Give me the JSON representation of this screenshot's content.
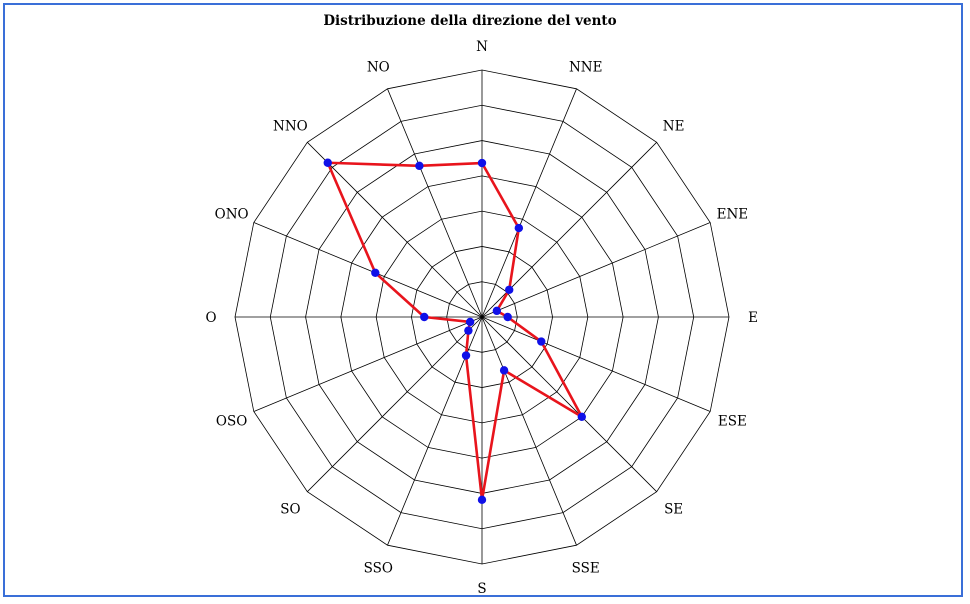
{
  "chart_data": {
    "type": "radar",
    "title": "Distribuzione della direzione del vento",
    "categories": [
      "N",
      "NNE",
      "NE",
      "ENE",
      "E",
      "ESE",
      "SE",
      "SSE",
      "S",
      "SSO",
      "SO",
      "OSO",
      "O",
      "ONO",
      "NNO",
      "NO"
    ],
    "series": [
      {
        "values": [
          4.8,
          3.0,
          1.2,
          0.5,
          0.8,
          2.0,
          4.4,
          1.8,
          5.7,
          1.3,
          0.6,
          0.4,
          1.8,
          3.6,
          6.8,
          5.1
        ]
      }
    ],
    "angles_deg": [
      0,
      22.5,
      45,
      67.5,
      90,
      112.5,
      135,
      157.5,
      180,
      202.5,
      225,
      247.5,
      270,
      292.5,
      315,
      337.5
    ],
    "point_order": [
      0,
      1,
      2,
      3,
      4,
      5,
      6,
      7,
      8,
      9,
      10,
      11,
      12,
      13,
      14,
      15
    ],
    "rlim": [
      0,
      7.7
    ],
    "rings": [
      1.1,
      2.2,
      3.3,
      4.4,
      5.5,
      6.6,
      7.7
    ],
    "line_color": "#e8141c",
    "marker_color": "#1010e8",
    "grid": true
  }
}
